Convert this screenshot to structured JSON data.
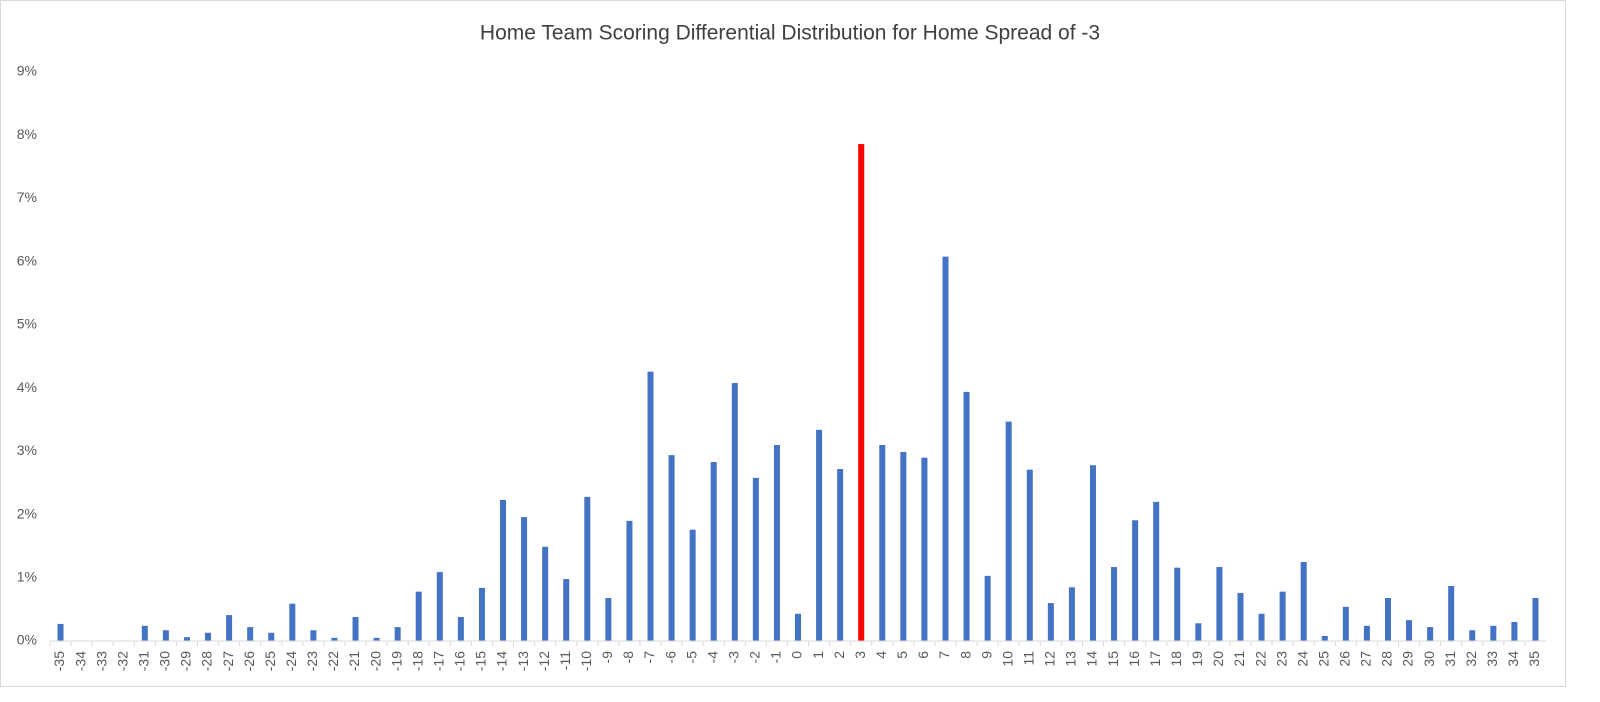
{
  "chart_data": {
    "type": "bar",
    "title": "Home Team Scoring Differential Distribution for Home Spread of -3",
    "categories": [
      "-35",
      "-34",
      "-33",
      "-32",
      "-31",
      "-30",
      "-29",
      "-28",
      "-27",
      "-26",
      "-25",
      "-24",
      "-23",
      "-22",
      "-21",
      "-20",
      "-19",
      "-18",
      "-17",
      "-16",
      "-15",
      "-14",
      "-13",
      "-12",
      "-11",
      "-10",
      "-9",
      "-8",
      "-7",
      "-6",
      "-5",
      "-4",
      "-3",
      "-2",
      "-1",
      "0",
      "1",
      "2",
      "3",
      "4",
      "5",
      "6",
      "7",
      "8",
      "9",
      "10",
      "11",
      "12",
      "13",
      "14",
      "15",
      "16",
      "17",
      "18",
      "19",
      "20",
      "21",
      "22",
      "23",
      "24",
      "25",
      "26",
      "27",
      "28",
      "29",
      "30",
      "31",
      "32",
      "33",
      "34",
      "35"
    ],
    "values": [
      0.27,
      0,
      0,
      0,
      0.24,
      0.17,
      0.06,
      0.13,
      0.41,
      0.22,
      0.13,
      0.59,
      0.17,
      0.05,
      0.38,
      0.05,
      0.22,
      0.78,
      1.09,
      0.38,
      0.84,
      2.23,
      1.96,
      1.49,
      0.98,
      2.28,
      0.68,
      1.9,
      4.26,
      2.94,
      1.76,
      2.83,
      4.08,
      2.58,
      3.1,
      0.43,
      3.34,
      2.72,
      7.86,
      3.1,
      2.99,
      2.9,
      6.08,
      3.94,
      1.03,
      3.47,
      2.71,
      0.6,
      0.85,
      2.78,
      1.17,
      1.91,
      2.2,
      1.16,
      0.28,
      1.17,
      0.76,
      0.43,
      0.78,
      1.25,
      0.08,
      0.54,
      0.24,
      0.68,
      0.33,
      0.22,
      0.87,
      0.17,
      0.24,
      0.3,
      0.68
    ],
    "colors": [
      "#4472c4",
      "#4472c4",
      "#4472c4",
      "#4472c4",
      "#4472c4",
      "#4472c4",
      "#4472c4",
      "#4472c4",
      "#4472c4",
      "#4472c4",
      "#4472c4",
      "#4472c4",
      "#4472c4",
      "#4472c4",
      "#4472c4",
      "#4472c4",
      "#4472c4",
      "#4472c4",
      "#4472c4",
      "#4472c4",
      "#4472c4",
      "#4472c4",
      "#4472c4",
      "#4472c4",
      "#4472c4",
      "#4472c4",
      "#4472c4",
      "#4472c4",
      "#4472c4",
      "#4472c4",
      "#4472c4",
      "#4472c4",
      "#4472c4",
      "#4472c4",
      "#4472c4",
      "#4472c4",
      "#4472c4",
      "#4472c4",
      "#ff0000",
      "#4472c4",
      "#4472c4",
      "#4472c4",
      "#4472c4",
      "#4472c4",
      "#4472c4",
      "#4472c4",
      "#4472c4",
      "#4472c4",
      "#4472c4",
      "#4472c4",
      "#4472c4",
      "#4472c4",
      "#4472c4",
      "#4472c4",
      "#4472c4",
      "#4472c4",
      "#4472c4",
      "#4472c4",
      "#4472c4",
      "#4472c4",
      "#4472c4",
      "#4472c4",
      "#4472c4",
      "#4472c4",
      "#4472c4",
      "#4472c4",
      "#4472c4",
      "#4472c4",
      "#4472c4",
      "#4472c4",
      "#4472c4"
    ],
    "ylim": [
      0,
      9
    ],
    "yticks": [
      {
        "value": 0,
        "label": "0%"
      },
      {
        "value": 1,
        "label": "1%"
      },
      {
        "value": 2,
        "label": "2%"
      },
      {
        "value": 3,
        "label": "3%"
      },
      {
        "value": 4,
        "label": "4%"
      },
      {
        "value": 5,
        "label": "5%"
      },
      {
        "value": 6,
        "label": "6%"
      },
      {
        "value": 7,
        "label": "7%"
      },
      {
        "value": 8,
        "label": "8%"
      },
      {
        "value": 9,
        "label": "9%"
      }
    ],
    "grid": false
  }
}
